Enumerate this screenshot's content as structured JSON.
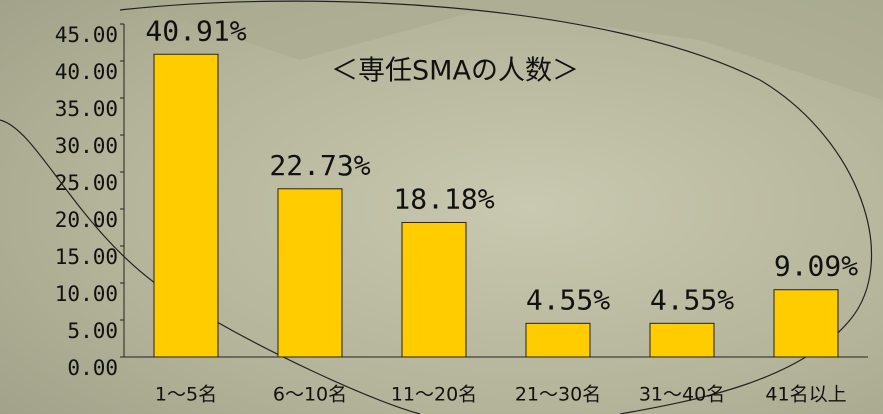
{
  "chart_data": {
    "type": "bar",
    "title": "＜専任SMAの人数＞",
    "categories": [
      "1～5名",
      "6～10名",
      "11～20名",
      "21～30名",
      "31～40名",
      "41名以上"
    ],
    "values": [
      40.91,
      22.73,
      18.18,
      4.55,
      4.55,
      9.09
    ],
    "value_labels": [
      "40.91%",
      "22.73%",
      "18.18%",
      "4.55%",
      "4.55%",
      "9.09%"
    ],
    "color": "#ffcc00",
    "ylim": [
      0,
      45
    ],
    "yticks": [
      {
        "value": 0,
        "label": "0.00"
      },
      {
        "value": 5,
        "label": "5.00"
      },
      {
        "value": 10,
        "label": "10.00"
      },
      {
        "value": 15,
        "label": "15.00"
      },
      {
        "value": 20,
        "label": "20.00"
      },
      {
        "value": 25,
        "label": "25.00"
      },
      {
        "value": 30,
        "label": "30.00"
      },
      {
        "value": 35,
        "label": "35.00"
      },
      {
        "value": 40,
        "label": "40.00"
      },
      {
        "value": 45,
        "label": "45.00"
      }
    ],
    "grid": false
  }
}
